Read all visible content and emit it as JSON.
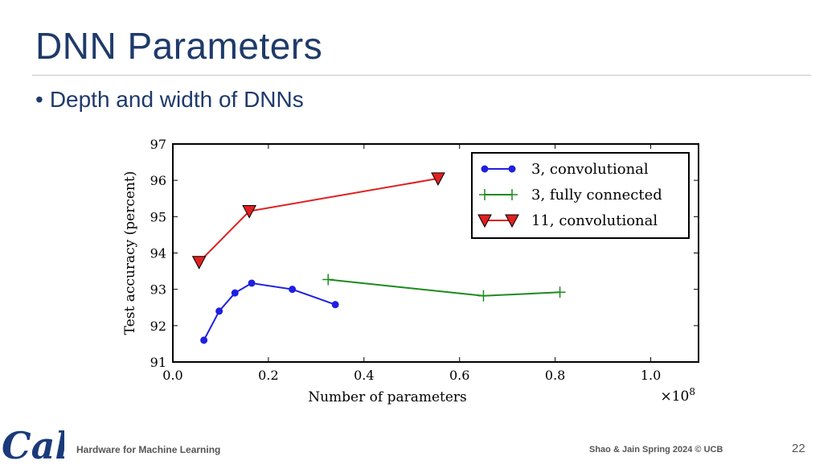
{
  "slide": {
    "title": "DNN Parameters",
    "bullet_marker": "•",
    "bullet": "Depth and width of DNNs"
  },
  "footer": {
    "logo_text": "Cal",
    "left": "Hardware for Machine Learning",
    "right": "Shao & Jain Spring 2024 © UCB",
    "page": "22"
  },
  "colors": {
    "title": "#1f3a6b",
    "series_blue": "#1f1fe0",
    "series_green": "#1e8a1e",
    "series_red": "#e02020",
    "logo": "#1a3a7a"
  },
  "chart_data": {
    "type": "line",
    "xlabel": "Number of parameters",
    "ylabel": "Test accuracy (percent)",
    "x_multiplier_label": "×10",
    "x_multiplier_exp": "8",
    "xlim": [
      0.0,
      1.1
    ],
    "ylim": [
      91,
      97
    ],
    "x_ticks": [
      0.0,
      0.2,
      0.4,
      0.6,
      0.8,
      1.0
    ],
    "x_tick_labels": [
      "0.0",
      "0.2",
      "0.4",
      "0.6",
      "0.8",
      "1.0"
    ],
    "y_ticks": [
      91,
      92,
      93,
      94,
      95,
      96,
      97
    ],
    "y_tick_labels": [
      "91",
      "92",
      "93",
      "94",
      "95",
      "96",
      "97"
    ],
    "grid": false,
    "legend_position": "top-right",
    "series": [
      {
        "name": "3, convolutional",
        "color": "#1f1fe0",
        "marker": "dot",
        "x": [
          0.065,
          0.097,
          0.13,
          0.165,
          0.25,
          0.34
        ],
        "y": [
          91.6,
          92.4,
          92.9,
          93.17,
          93.0,
          92.58
        ]
      },
      {
        "name": "3, fully connected",
        "color": "#1e8a1e",
        "marker": "plus",
        "x": [
          0.325,
          0.65,
          0.81
        ],
        "y": [
          93.27,
          92.82,
          92.92
        ]
      },
      {
        "name": "11, convolutional",
        "color": "#e02020",
        "marker": "triangle-down",
        "x": [
          0.055,
          0.16,
          0.555
        ],
        "y": [
          93.75,
          95.15,
          96.05
        ]
      }
    ]
  }
}
